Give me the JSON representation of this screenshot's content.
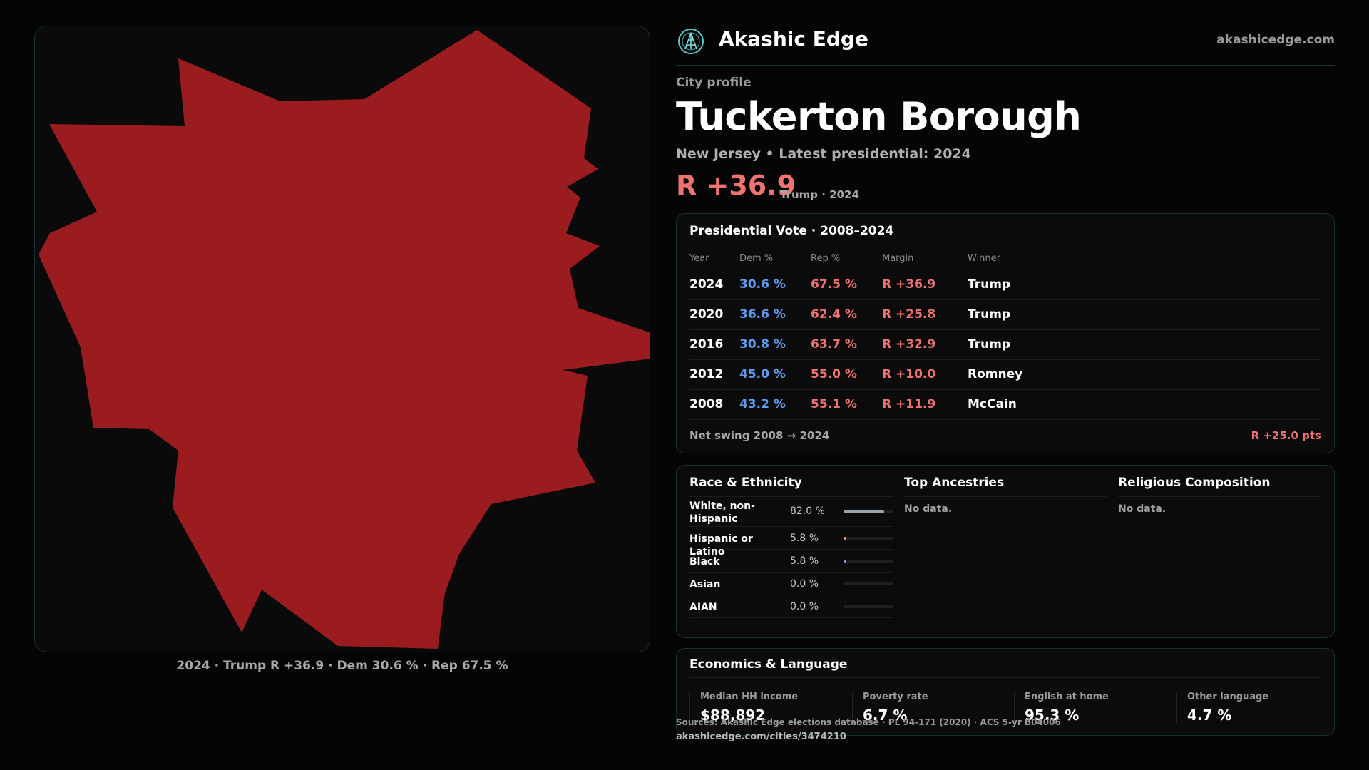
{
  "map": {
    "fill_color": "#9b1c1f",
    "caption": "2024 · Trump R +36.9 · Dem 30.6 % · Rep 67.5 %"
  },
  "brand": {
    "name": "Akashic Edge",
    "url": "akashicedge.com",
    "logo_icon": "akashic-logo-icon"
  },
  "profile": {
    "kicker": "City profile",
    "title": "Tuckerton Borough",
    "subtitle": "New Jersey • Latest presidential: 2024",
    "margin": "R +36.9",
    "margin_note": "Trump · 2024"
  },
  "presidential": {
    "title": "Presidential Vote · 2008–2024",
    "headers": {
      "year": "Year",
      "dem": "Dem %",
      "rep": "Rep %",
      "margin": "Margin",
      "winner": "Winner"
    },
    "rows": [
      {
        "year": "2024",
        "dem": "30.6 %",
        "rep": "67.5 %",
        "margin": "R +36.9",
        "winner": "Trump"
      },
      {
        "year": "2020",
        "dem": "36.6 %",
        "rep": "62.4 %",
        "margin": "R +25.8",
        "winner": "Trump"
      },
      {
        "year": "2016",
        "dem": "30.8 %",
        "rep": "63.7 %",
        "margin": "R +32.9",
        "winner": "Trump"
      },
      {
        "year": "2012",
        "dem": "45.0 %",
        "rep": "55.0 %",
        "margin": "R +10.0",
        "winner": "Romney"
      },
      {
        "year": "2008",
        "dem": "43.2 %",
        "rep": "55.1 %",
        "margin": "R +11.9",
        "winner": "McCain"
      }
    ],
    "swing_label": "Net swing 2008 → 2024",
    "swing_value": "R +25.0 pts",
    "colors": {
      "dem": "#5b9bf0",
      "rep": "#f07272"
    }
  },
  "race": {
    "title": "Race & Ethnicity",
    "items": [
      {
        "name": "White, non-Hispanic",
        "value": "82.0 %",
        "share": 0.82,
        "color": "#9aa3ad"
      },
      {
        "name": "Hispanic or Latino",
        "value": "5.8 %",
        "share": 0.058,
        "color": "#e0a244"
      },
      {
        "name": "Black",
        "value": "5.8 %",
        "share": 0.058,
        "color": "#8f86f0"
      },
      {
        "name": "Asian",
        "value": "0.0 %",
        "share": 0.0,
        "color": "#4fc2b8"
      },
      {
        "name": "AIAN",
        "value": "0.0 %",
        "share": 0.0,
        "color": "#d07a9a"
      }
    ]
  },
  "ancestries": {
    "title": "Top Ancestries",
    "empty": "No data."
  },
  "religion": {
    "title": "Religious Composition",
    "empty": "No data."
  },
  "economics": {
    "title": "Economics & Language",
    "stats": [
      {
        "label": "Median HH income",
        "value": "$88,892"
      },
      {
        "label": "Poverty rate",
        "value": "6.7 %"
      },
      {
        "label": "English at home",
        "value": "95.3 %"
      },
      {
        "label": "Other language",
        "value": "4.7 %"
      }
    ]
  },
  "footer": {
    "sources": "Sources: Akashic Edge elections database · PL 94-171 (2020) · ACS 5-yr B04006",
    "page_url": "akashicedge.com/cities/3474210"
  }
}
